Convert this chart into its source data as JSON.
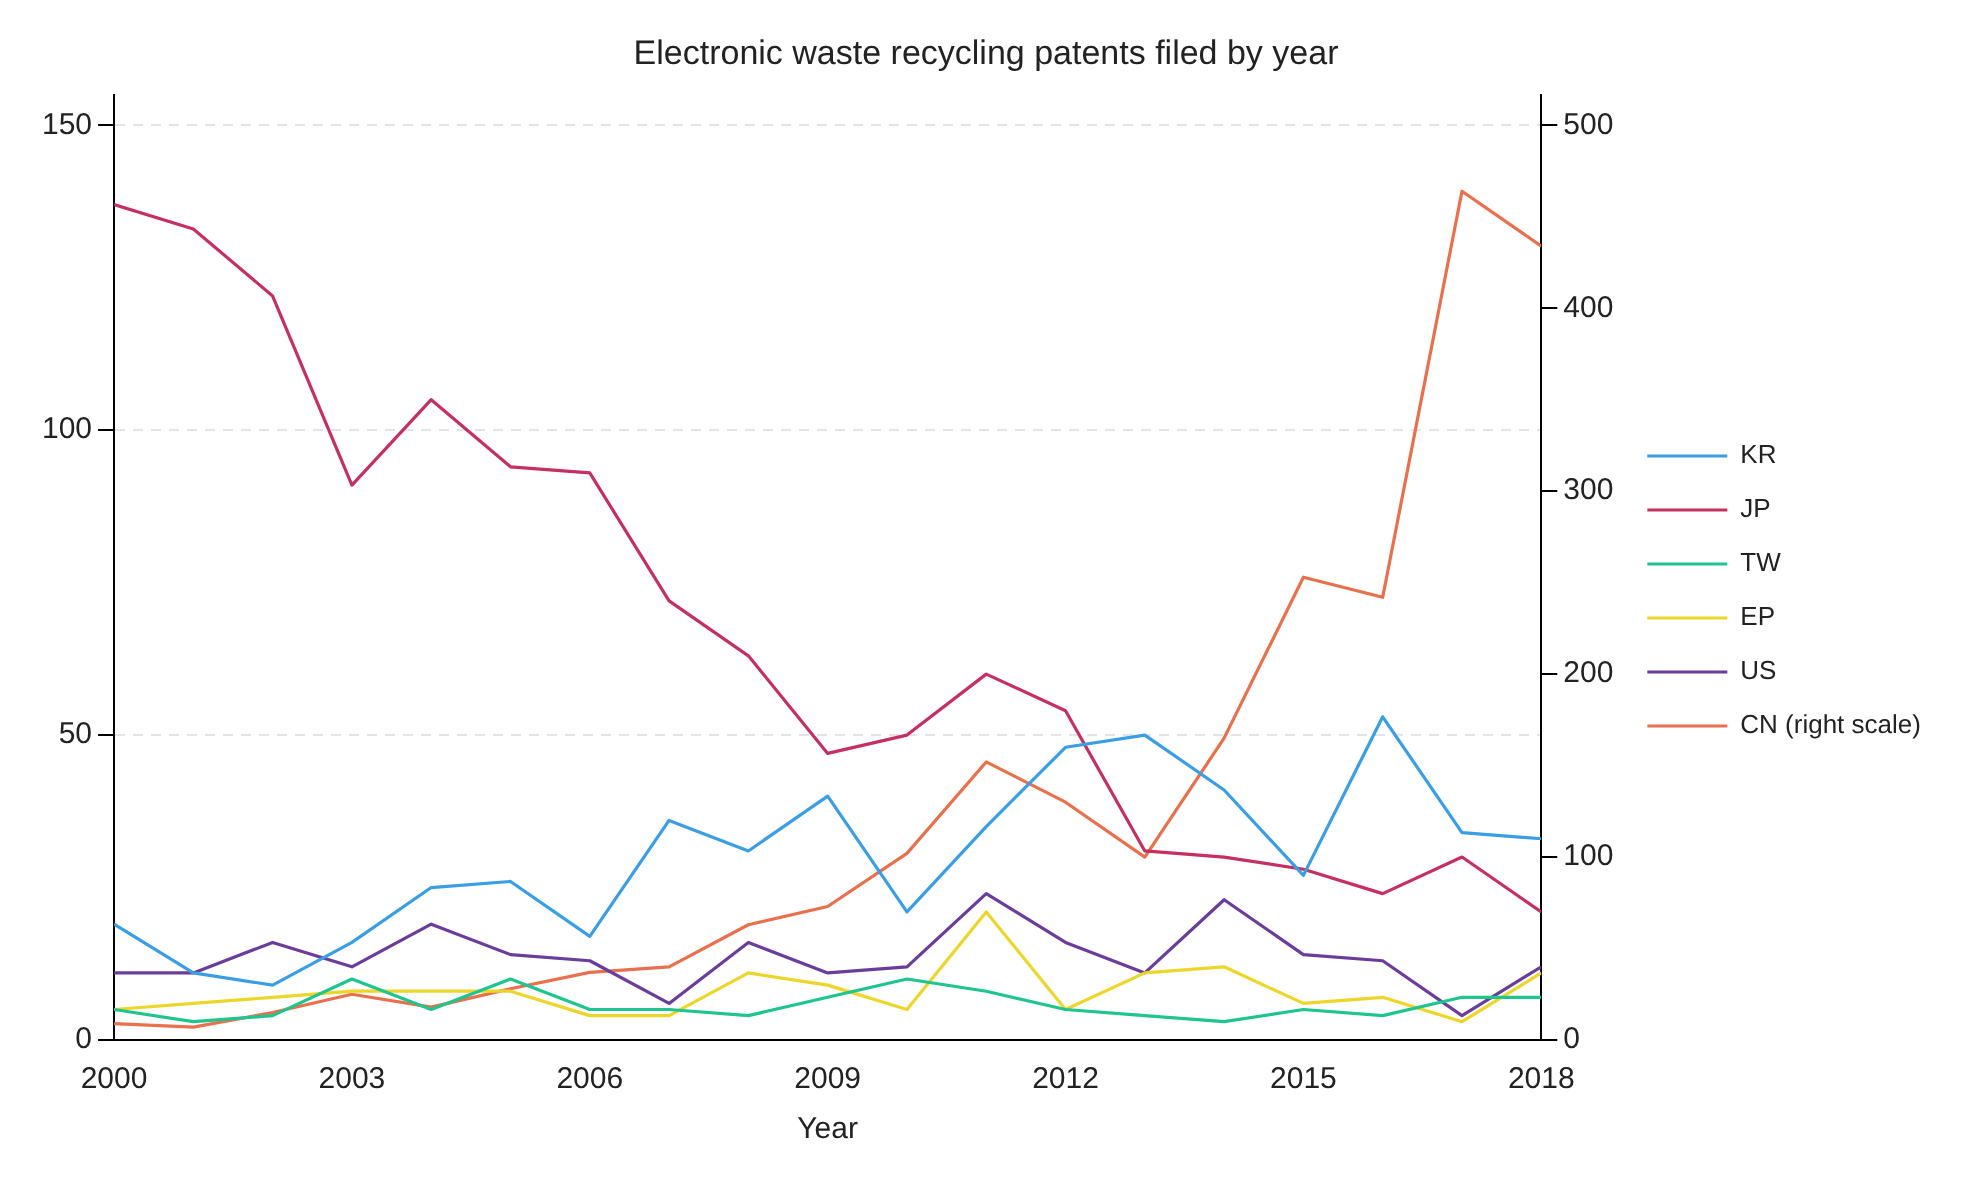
{
  "chart_data": {
    "type": "line",
    "title": "Electronic waste recycling patents filed by year",
    "xlabel": "Year",
    "x": [
      2000,
      2001,
      2002,
      2003,
      2004,
      2005,
      2006,
      2007,
      2008,
      2009,
      2010,
      2011,
      2012,
      2013,
      2014,
      2015,
      2016,
      2017,
      2018
    ],
    "xlim": [
      2000,
      2018
    ],
    "xticks": [
      2000,
      2003,
      2006,
      2009,
      2012,
      2015,
      2018
    ],
    "ylim": [
      0,
      155
    ],
    "yticks": [
      0,
      50,
      100,
      150
    ],
    "y2lim": [
      0,
      516.7
    ],
    "y2ticks": [
      0,
      100,
      200,
      300,
      400,
      500
    ],
    "grid": "y",
    "legend": "right",
    "marker": "none",
    "line_style": "solid",
    "series": [
      {
        "name": "KR",
        "color": "#3a9ee4",
        "values": [
          19,
          11,
          9,
          16,
          25,
          26,
          17,
          36,
          31,
          40,
          21,
          35,
          48,
          50,
          41,
          27,
          53,
          34,
          33
        ]
      },
      {
        "name": "JP",
        "color": "#c4305f",
        "values": [
          137,
          133,
          122,
          91,
          105,
          94,
          93,
          72,
          63,
          47,
          50,
          60,
          54,
          31,
          30,
          28,
          24,
          30,
          21
        ]
      },
      {
        "name": "TW",
        "color": "#1fc48f",
        "values": [
          5,
          3,
          4,
          10,
          5,
          10,
          5,
          5,
          4,
          7,
          10,
          8,
          5,
          4,
          3,
          5,
          4,
          7,
          7
        ]
      },
      {
        "name": "EP",
        "color": "#ecd62a",
        "values": [
          5,
          6,
          7,
          8,
          8,
          8,
          4,
          4,
          11,
          9,
          5,
          21,
          5,
          11,
          12,
          6,
          7,
          3,
          11
        ]
      },
      {
        "name": "US",
        "color": "#6a3d9a",
        "values": [
          11,
          11,
          16,
          12,
          19,
          14,
          13,
          6,
          16,
          11,
          12,
          24,
          16,
          11,
          23,
          14,
          13,
          4,
          12
        ]
      },
      {
        "name": "CN (right scale)",
        "color": "#e8704c",
        "axis": "y2",
        "values": [
          9,
          7,
          15,
          25,
          18,
          28,
          37,
          40,
          63,
          73,
          102,
          152,
          130,
          100,
          165,
          253,
          242,
          464,
          434
        ]
      }
    ]
  }
}
